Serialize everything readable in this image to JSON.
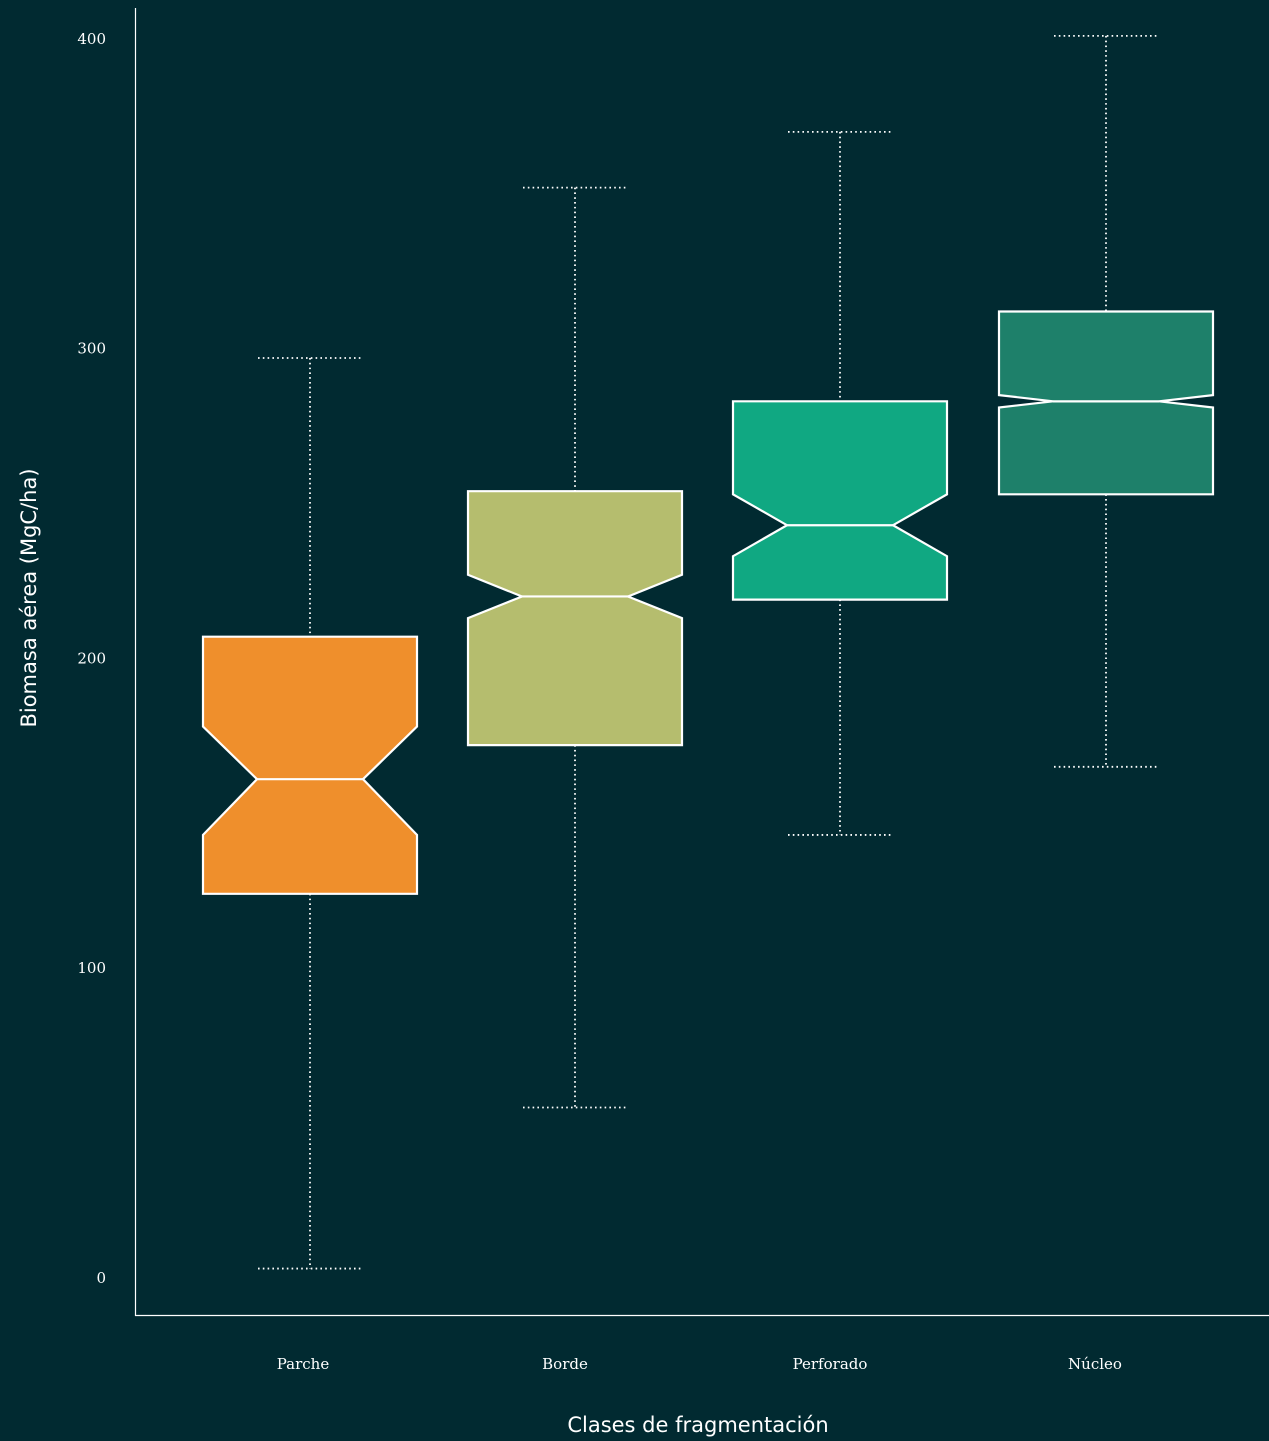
{
  "chart_data": {
    "type": "box",
    "notched": true,
    "xlabel": "Clases de fragmentación",
    "ylabel": "Biomasa aérea (MgC/ha)",
    "categories": [
      "Parche",
      "Borde",
      "Perforado",
      "Núcleo"
    ],
    "y_ticks": [
      0,
      100,
      200,
      300,
      400
    ],
    "ylim": [
      -12,
      410
    ],
    "grid": false,
    "boxes": [
      {
        "name": "Parche",
        "whisker_low": 3,
        "q1": 124,
        "median": 161,
        "q3": 207,
        "whisker_high": 297,
        "notch_low": 143,
        "notch_high": 178,
        "color": "#ef8f2c"
      },
      {
        "name": "Borde",
        "whisker_low": 55,
        "q1": 172,
        "median": 220,
        "q3": 254,
        "whisker_high": 352,
        "notch_low": 213,
        "notch_high": 227,
        "color": "#b5bd6e"
      },
      {
        "name": "Perforado",
        "whisker_low": 143,
        "q1": 219,
        "median": 243,
        "q3": 283,
        "whisker_high": 370,
        "notch_low": 233,
        "notch_high": 253,
        "color": "#10a882"
      },
      {
        "name": "Núcleo",
        "whisker_low": 165,
        "q1": 253,
        "median": 283,
        "q3": 312,
        "whisker_high": 401,
        "notch_low": 281,
        "notch_high": 285,
        "color": "#1e806a"
      }
    ],
    "colors": {
      "background": "#012a31",
      "text": "#ffffff",
      "outline": "#ffffff"
    }
  }
}
